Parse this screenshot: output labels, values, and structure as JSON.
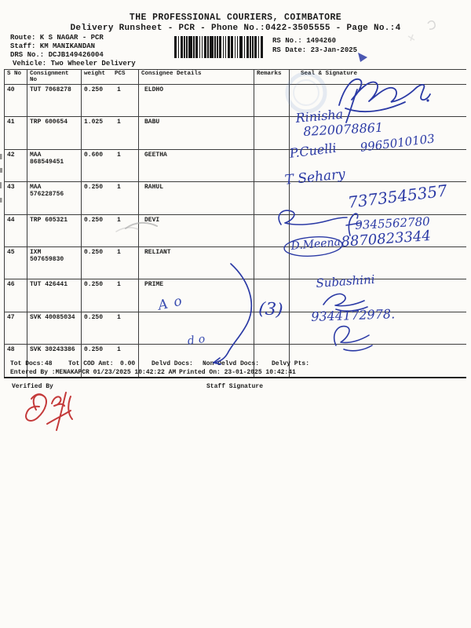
{
  "document": {
    "title": "THE PROFESSIONAL COURIERS, COIMBATORE",
    "subtitle": "Delivery Runsheet - PCR - Phone No.:0422-3505555 - Page No.:4"
  },
  "meta": {
    "route": "Route: K S NAGAR - PCR",
    "staff": "Staff: KM MANIKANDAN",
    "drs_no": "DRS No.: DCJB149426004",
    "vehicle": "Vehicle: Two Wheeler Delivery",
    "rs_no": "RS No.: 1494260",
    "rs_date": "RS Date: 23-Jan-2025"
  },
  "table": {
    "headers": {
      "s_no": "S No",
      "consignment_no": "Consignment No",
      "weight": "weight",
      "pcs": "PCS",
      "consignee": "Consignee Details",
      "remarks": "Remarks",
      "seal": "Seal & Signature"
    },
    "rows": [
      {
        "s_no": "40",
        "consignment_no": "TUT 7068278",
        "weight": "0.250",
        "pcs": "1",
        "consignee": "ELDHO"
      },
      {
        "s_no": "41",
        "consignment_no": "TRP 600654",
        "weight": "1.025",
        "pcs": "1",
        "consignee": "BABU"
      },
      {
        "s_no": "42",
        "consignment_no": "MAA 868549451",
        "weight": "0.600",
        "pcs": "1",
        "consignee": "GEETHA"
      },
      {
        "s_no": "43",
        "consignment_no": "MAA 576228756",
        "weight": "0.250",
        "pcs": "1",
        "consignee": "RAHUL"
      },
      {
        "s_no": "44",
        "consignment_no": "TRP 605321",
        "weight": "0.250",
        "pcs": "1",
        "consignee": "DEVI"
      },
      {
        "s_no": "45",
        "consignment_no": "IXM 507659830",
        "weight": "0.250",
        "pcs": "1",
        "consignee": "RELIANT"
      },
      {
        "s_no": "46",
        "consignment_no": "TUT 426441",
        "weight": "0.250",
        "pcs": "1",
        "consignee": "PRIME"
      },
      {
        "s_no": "47",
        "consignment_no": "SVK 40085034",
        "weight": "0.250",
        "pcs": "1",
        "consignee": ""
      },
      {
        "s_no": "48",
        "consignment_no": "SVK 30243386",
        "weight": "0.250",
        "pcs": "1",
        "consignee": ""
      }
    ]
  },
  "handwriting": {
    "ink_color": "#2b3aa5",
    "items": [
      {
        "text": "Rinisha"
      },
      {
        "text": "8220078861"
      },
      {
        "text": "P.Cuelli"
      },
      {
        "text": "9965010103"
      },
      {
        "text": "T Sehary"
      },
      {
        "text": "7373545357"
      },
      {
        "text": "9345562780"
      },
      {
        "text": "D.Meena"
      },
      {
        "text": "8870823344"
      },
      {
        "text": "Subashini"
      },
      {
        "text": "9344172978."
      },
      {
        "text": "Ao"
      },
      {
        "text": "do"
      },
      {
        "text": "(3)"
      }
    ]
  },
  "footer": {
    "tot_docs_label": "Tot Docs:",
    "tot_docs_value": "48",
    "cod_label": "Tot COD Amt:",
    "cod_value": "0.00",
    "delvd_label": "Delvd Docs:",
    "non_delvd_label": "Non Delvd Docs:",
    "delvy_label": "Delvy Pts:",
    "entered_by": "Entered By :MENAKAPCR 01/23/2025 10:42:22 AM",
    "printed_on": "Printed On: 23-01-2025 10:42:41",
    "verified_by_label": "Verified By",
    "staff_signature_label": "Staff Signature"
  }
}
